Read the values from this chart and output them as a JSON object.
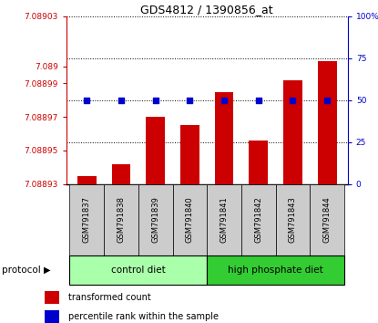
{
  "title": "GDS4812 / 1390856_at",
  "samples": [
    "GSM791837",
    "GSM791838",
    "GSM791839",
    "GSM791840",
    "GSM791841",
    "GSM791842",
    "GSM791843",
    "GSM791844"
  ],
  "transformed_count": [
    7.088935,
    7.088942,
    7.08897,
    7.088965,
    7.088985,
    7.088956,
    7.088992,
    7.089003
  ],
  "percentile_rank": [
    50,
    50,
    50,
    50,
    50,
    50,
    50,
    50
  ],
  "ylim_left": [
    7.08893,
    7.08903
  ],
  "ylim_right": [
    0,
    100
  ],
  "left_ticks": [
    7.08893,
    7.08895,
    7.08897,
    7.08899,
    7.089,
    7.08903
  ],
  "left_tick_labels": [
    "7.08893",
    "7.08895",
    "7.08897",
    "7.08899",
    "7.089",
    "7.08903"
  ],
  "right_ticks": [
    0,
    25,
    50,
    75,
    100
  ],
  "right_tick_labels": [
    "0",
    "25",
    "50",
    "75",
    "100%"
  ],
  "bar_color": "#cc0000",
  "dot_color": "#0000cc",
  "left_axis_color": "#cc0000",
  "right_axis_color": "#0000cc",
  "sample_bg_color": "#cccccc",
  "control_diet_color": "#aaffaa",
  "high_phosphate_color": "#33cc33",
  "protocol_groups": [
    {
      "label": "control diet",
      "start": 0,
      "end": 3,
      "color": "#aaffaa"
    },
    {
      "label": "high phosphate diet",
      "start": 4,
      "end": 7,
      "color": "#33cc33"
    }
  ],
  "legend_items": [
    {
      "color": "#cc0000",
      "label": "transformed count"
    },
    {
      "color": "#0000cc",
      "label": "percentile rank within the sample"
    }
  ]
}
